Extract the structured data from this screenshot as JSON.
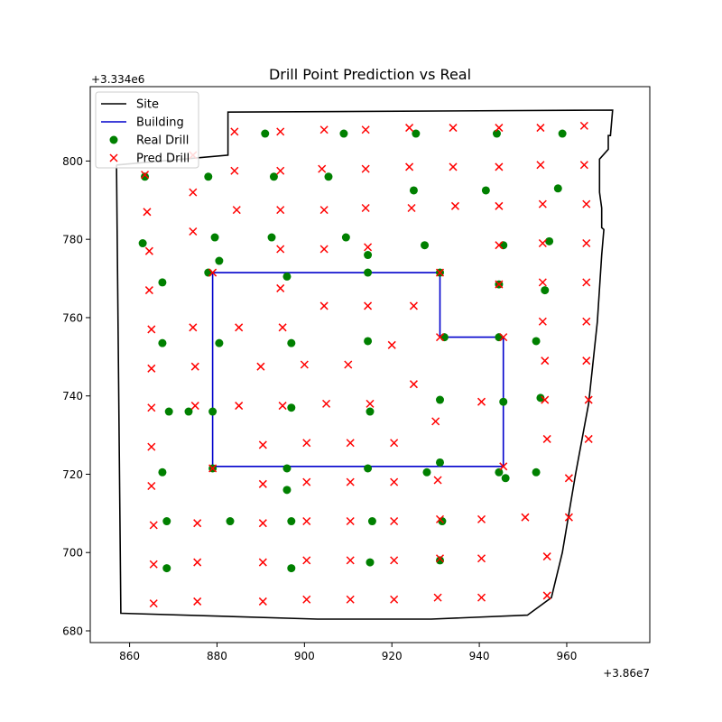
{
  "chart_data": {
    "type": "scatter",
    "title": "Drill Point Prediction vs Real",
    "xlabel": "",
    "ylabel": "",
    "x_offset_label": "+3.86e7",
    "y_offset_label": "+3.334e6",
    "xlim": [
      851,
      979
    ],
    "ylim": [
      677,
      819
    ],
    "x_ticks": [
      860,
      880,
      900,
      920,
      940,
      960
    ],
    "y_ticks": [
      680,
      700,
      720,
      740,
      760,
      780,
      800
    ],
    "grid": false,
    "legend_position": "upper-left",
    "legend": [
      "Site",
      "Building",
      "Real Drill",
      "Pred Drill"
    ],
    "colors": {
      "site": "#000000",
      "building": "#0000cc",
      "real": "#008000",
      "pred": "#ff0000"
    },
    "series": [
      {
        "name": "Site",
        "kind": "line",
        "points": [
          [
            857,
            799
          ],
          [
            858,
            684.5
          ],
          [
            903,
            683
          ],
          [
            929,
            683
          ],
          [
            951,
            684
          ],
          [
            956.5,
            688.5
          ],
          [
            959,
            700
          ],
          [
            962,
            720
          ],
          [
            965,
            738
          ],
          [
            967,
            759
          ],
          [
            968,
            776
          ],
          [
            968.5,
            782.5
          ],
          [
            968,
            783
          ],
          [
            968,
            788
          ],
          [
            967.5,
            792
          ],
          [
            967.5,
            800.5
          ],
          [
            969.5,
            803
          ],
          [
            969.5,
            806.5
          ],
          [
            970,
            806.5
          ],
          [
            970.5,
            813
          ],
          [
            882.5,
            812.5
          ],
          [
            882.5,
            801.5
          ],
          [
            857,
            799
          ]
        ]
      },
      {
        "name": "Building",
        "kind": "line",
        "points": [
          [
            879,
            722
          ],
          [
            879,
            771.5
          ],
          [
            931,
            771.5
          ],
          [
            931,
            755
          ],
          [
            945.5,
            755
          ],
          [
            945.5,
            722
          ],
          [
            879,
            722
          ]
        ]
      },
      {
        "name": "Real Drill",
        "kind": "points",
        "points": [
          [
            891,
            807
          ],
          [
            909,
            807
          ],
          [
            925.5,
            807
          ],
          [
            944,
            807
          ],
          [
            959,
            807
          ],
          [
            863.5,
            796
          ],
          [
            878,
            796
          ],
          [
            893,
            796
          ],
          [
            905.5,
            796
          ],
          [
            925,
            792.5
          ],
          [
            941.5,
            792.5
          ],
          [
            958,
            793
          ],
          [
            863,
            779
          ],
          [
            879.5,
            780.5
          ],
          [
            892.5,
            780.5
          ],
          [
            909.5,
            780.5
          ],
          [
            927.5,
            778.5
          ],
          [
            945.5,
            778.5
          ],
          [
            956,
            779.5
          ],
          [
            880.5,
            774.5
          ],
          [
            914.5,
            776
          ],
          [
            878,
            771.5
          ],
          [
            896,
            770.5
          ],
          [
            914.5,
            771.5
          ],
          [
            931,
            771.5
          ],
          [
            867.5,
            769
          ],
          [
            944.5,
            768.5
          ],
          [
            955,
            767
          ],
          [
            867.5,
            753.5
          ],
          [
            880.5,
            753.5
          ],
          [
            897,
            753.5
          ],
          [
            914.5,
            754
          ],
          [
            932,
            755
          ],
          [
            944.5,
            755
          ],
          [
            953,
            754
          ],
          [
            869,
            736
          ],
          [
            873.5,
            736
          ],
          [
            879,
            736
          ],
          [
            897,
            737
          ],
          [
            915,
            736
          ],
          [
            931,
            739
          ],
          [
            945.5,
            738.5
          ],
          [
            954,
            739.5
          ],
          [
            867.5,
            720.5
          ],
          [
            879,
            721.5
          ],
          [
            896,
            721.5
          ],
          [
            914.5,
            721.5
          ],
          [
            928,
            720.5
          ],
          [
            931,
            723
          ],
          [
            944.5,
            720.5
          ],
          [
            946,
            719
          ],
          [
            953,
            720.5
          ],
          [
            896,
            716
          ],
          [
            868.5,
            708
          ],
          [
            883,
            708
          ],
          [
            897,
            708
          ],
          [
            915.5,
            708
          ],
          [
            931.5,
            708
          ],
          [
            868.5,
            696
          ],
          [
            897,
            696
          ],
          [
            915,
            697.5
          ],
          [
            931,
            698
          ]
        ]
      },
      {
        "name": "Pred Drill",
        "kind": "points",
        "points": [
          [
            884,
            807.5
          ],
          [
            894.5,
            807.5
          ],
          [
            904.5,
            808
          ],
          [
            914,
            808
          ],
          [
            924,
            808.5
          ],
          [
            934,
            808.5
          ],
          [
            944.5,
            808.5
          ],
          [
            954,
            808.5
          ],
          [
            964,
            809
          ],
          [
            863.5,
            796.5
          ],
          [
            874.5,
            801.5
          ],
          [
            884,
            797.5
          ],
          [
            894.5,
            797.5
          ],
          [
            904,
            798
          ],
          [
            914,
            798
          ],
          [
            924,
            798.5
          ],
          [
            934,
            798.5
          ],
          [
            944.5,
            798.5
          ],
          [
            954,
            799
          ],
          [
            964,
            799
          ],
          [
            864,
            787
          ],
          [
            874.5,
            792
          ],
          [
            884.5,
            787.5
          ],
          [
            894.5,
            787.5
          ],
          [
            904.5,
            787.5
          ],
          [
            914,
            788
          ],
          [
            924.5,
            788
          ],
          [
            934.5,
            788.5
          ],
          [
            944.5,
            788.5
          ],
          [
            954.5,
            789
          ],
          [
            964.5,
            789
          ],
          [
            864.5,
            777
          ],
          [
            874.5,
            782
          ],
          [
            894.5,
            777.5
          ],
          [
            904.5,
            777.5
          ],
          [
            914.5,
            778
          ],
          [
            944.5,
            778.5
          ],
          [
            954.5,
            779
          ],
          [
            964.5,
            779
          ],
          [
            864.5,
            767
          ],
          [
            879,
            771.5
          ],
          [
            894.5,
            767.5
          ],
          [
            931,
            771.5
          ],
          [
            944.5,
            768.5
          ],
          [
            954.5,
            769
          ],
          [
            964.5,
            769
          ],
          [
            865,
            757
          ],
          [
            874.5,
            757.5
          ],
          [
            885,
            757.5
          ],
          [
            895,
            757.5
          ],
          [
            904.5,
            763
          ],
          [
            914.5,
            763
          ],
          [
            925,
            763
          ],
          [
            931,
            755
          ],
          [
            945.5,
            755
          ],
          [
            954.5,
            759
          ],
          [
            964.5,
            759
          ],
          [
            865,
            747
          ],
          [
            875,
            747.5
          ],
          [
            890,
            747.5
          ],
          [
            900,
            748
          ],
          [
            910,
            748
          ],
          [
            920,
            753
          ],
          [
            955,
            749
          ],
          [
            964.5,
            749
          ],
          [
            865,
            737
          ],
          [
            875,
            737.5
          ],
          [
            885,
            737.5
          ],
          [
            895,
            737.5
          ],
          [
            905,
            738
          ],
          [
            915,
            738
          ],
          [
            925,
            743
          ],
          [
            930,
            733.5
          ],
          [
            940.5,
            738.5
          ],
          [
            955,
            739
          ],
          [
            965,
            739
          ],
          [
            865,
            727
          ],
          [
            890.5,
            727.5
          ],
          [
            900.5,
            728
          ],
          [
            910.5,
            728
          ],
          [
            920.5,
            728
          ],
          [
            879,
            721.5
          ],
          [
            945.5,
            722
          ],
          [
            955.5,
            729
          ],
          [
            965,
            729
          ],
          [
            865,
            717
          ],
          [
            890.5,
            717.5
          ],
          [
            900.5,
            718
          ],
          [
            910.5,
            718
          ],
          [
            920.5,
            718
          ],
          [
            930.5,
            718.5
          ],
          [
            960.5,
            719
          ],
          [
            865.5,
            707
          ],
          [
            875.5,
            707.5
          ],
          [
            890.5,
            707.5
          ],
          [
            900.5,
            708
          ],
          [
            910.5,
            708
          ],
          [
            920.5,
            708
          ],
          [
            931,
            708.5
          ],
          [
            940.5,
            708.5
          ],
          [
            950.5,
            709
          ],
          [
            960.5,
            709
          ],
          [
            865.5,
            697
          ],
          [
            875.5,
            697.5
          ],
          [
            890.5,
            697.5
          ],
          [
            900.5,
            698
          ],
          [
            910.5,
            698
          ],
          [
            920.5,
            698
          ],
          [
            931,
            698.5
          ],
          [
            940.5,
            698.5
          ],
          [
            955.5,
            699
          ],
          [
            865.5,
            687
          ],
          [
            875.5,
            687.5
          ],
          [
            890.5,
            687.5
          ],
          [
            900.5,
            688
          ],
          [
            910.5,
            688
          ],
          [
            920.5,
            688
          ],
          [
            930.5,
            688.5
          ],
          [
            940.5,
            688.5
          ],
          [
            955.5,
            689
          ]
        ]
      }
    ]
  }
}
